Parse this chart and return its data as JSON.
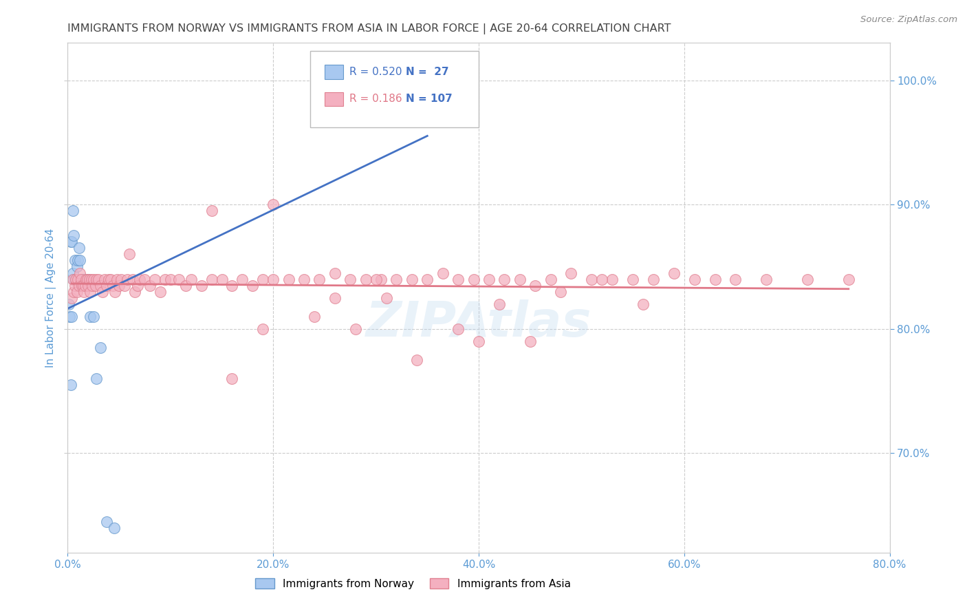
{
  "title": "IMMIGRANTS FROM NORWAY VS IMMIGRANTS FROM ASIA IN LABOR FORCE | AGE 20-64 CORRELATION CHART",
  "source": "Source: ZipAtlas.com",
  "ylabel": "In Labor Force | Age 20-64",
  "norway_R": 0.52,
  "norway_N": 27,
  "asia_R": 0.186,
  "asia_N": 107,
  "norway_color": "#a8c8f0",
  "asia_color": "#f4b0c0",
  "norway_edge_color": "#6699cc",
  "asia_edge_color": "#e08090",
  "norway_line_color": "#4472c4",
  "asia_line_color": "#e07888",
  "xlim": [
    0.0,
    0.8
  ],
  "ylim": [
    0.62,
    1.03
  ],
  "yticks": [
    0.7,
    0.8,
    0.9,
    1.0
  ],
  "xticks": [
    0.0,
    0.2,
    0.4,
    0.6,
    0.8
  ],
  "norway_x": [
    0.001,
    0.002,
    0.003,
    0.003,
    0.004,
    0.004,
    0.005,
    0.005,
    0.006,
    0.006,
    0.007,
    0.008,
    0.009,
    0.01,
    0.011,
    0.012,
    0.014,
    0.016,
    0.018,
    0.02,
    0.022,
    0.025,
    0.028,
    0.032,
    0.038,
    0.045,
    0.35
  ],
  "norway_y": [
    0.82,
    0.81,
    0.87,
    0.755,
    0.81,
    0.87,
    0.845,
    0.895,
    0.84,
    0.875,
    0.855,
    0.84,
    0.85,
    0.855,
    0.865,
    0.855,
    0.84,
    0.84,
    0.84,
    0.84,
    0.81,
    0.81,
    0.76,
    0.785,
    0.645,
    0.64,
    1.0
  ],
  "asia_x": [
    0.004,
    0.005,
    0.006,
    0.007,
    0.008,
    0.009,
    0.01,
    0.011,
    0.012,
    0.013,
    0.014,
    0.015,
    0.016,
    0.017,
    0.018,
    0.019,
    0.02,
    0.021,
    0.022,
    0.023,
    0.024,
    0.025,
    0.027,
    0.028,
    0.03,
    0.032,
    0.034,
    0.036,
    0.038,
    0.04,
    0.042,
    0.044,
    0.046,
    0.048,
    0.05,
    0.052,
    0.055,
    0.058,
    0.06,
    0.063,
    0.065,
    0.068,
    0.07,
    0.075,
    0.08,
    0.085,
    0.09,
    0.095,
    0.1,
    0.108,
    0.115,
    0.12,
    0.13,
    0.14,
    0.15,
    0.16,
    0.17,
    0.18,
    0.19,
    0.2,
    0.215,
    0.23,
    0.245,
    0.26,
    0.275,
    0.29,
    0.305,
    0.32,
    0.335,
    0.35,
    0.365,
    0.38,
    0.395,
    0.41,
    0.425,
    0.44,
    0.455,
    0.47,
    0.49,
    0.51,
    0.53,
    0.55,
    0.57,
    0.59,
    0.61,
    0.63,
    0.65,
    0.68,
    0.72,
    0.76,
    0.19,
    0.28,
    0.34,
    0.4,
    0.45,
    0.52,
    0.3,
    0.38,
    0.24,
    0.16,
    0.48,
    0.56,
    0.42,
    0.31,
    0.26,
    0.2,
    0.14
  ],
  "asia_y": [
    0.825,
    0.84,
    0.83,
    0.835,
    0.84,
    0.83,
    0.84,
    0.835,
    0.845,
    0.84,
    0.835,
    0.835,
    0.83,
    0.835,
    0.84,
    0.84,
    0.835,
    0.84,
    0.83,
    0.84,
    0.835,
    0.84,
    0.835,
    0.84,
    0.84,
    0.835,
    0.83,
    0.84,
    0.835,
    0.84,
    0.84,
    0.835,
    0.83,
    0.84,
    0.835,
    0.84,
    0.835,
    0.84,
    0.86,
    0.84,
    0.83,
    0.835,
    0.84,
    0.84,
    0.835,
    0.84,
    0.83,
    0.84,
    0.84,
    0.84,
    0.835,
    0.84,
    0.835,
    0.84,
    0.84,
    0.835,
    0.84,
    0.835,
    0.84,
    0.84,
    0.84,
    0.84,
    0.84,
    0.845,
    0.84,
    0.84,
    0.84,
    0.84,
    0.84,
    0.84,
    0.845,
    0.84,
    0.84,
    0.84,
    0.84,
    0.84,
    0.835,
    0.84,
    0.845,
    0.84,
    0.84,
    0.84,
    0.84,
    0.845,
    0.84,
    0.84,
    0.84,
    0.84,
    0.84,
    0.84,
    0.8,
    0.8,
    0.775,
    0.79,
    0.79,
    0.84,
    0.84,
    0.8,
    0.81,
    0.76,
    0.83,
    0.82,
    0.82,
    0.825,
    0.825,
    0.9,
    0.895
  ],
  "watermark": "ZIPAtlas",
  "background_color": "#ffffff",
  "grid_color": "#cccccc",
  "axis_color": "#5b9bd5",
  "title_color": "#444444"
}
